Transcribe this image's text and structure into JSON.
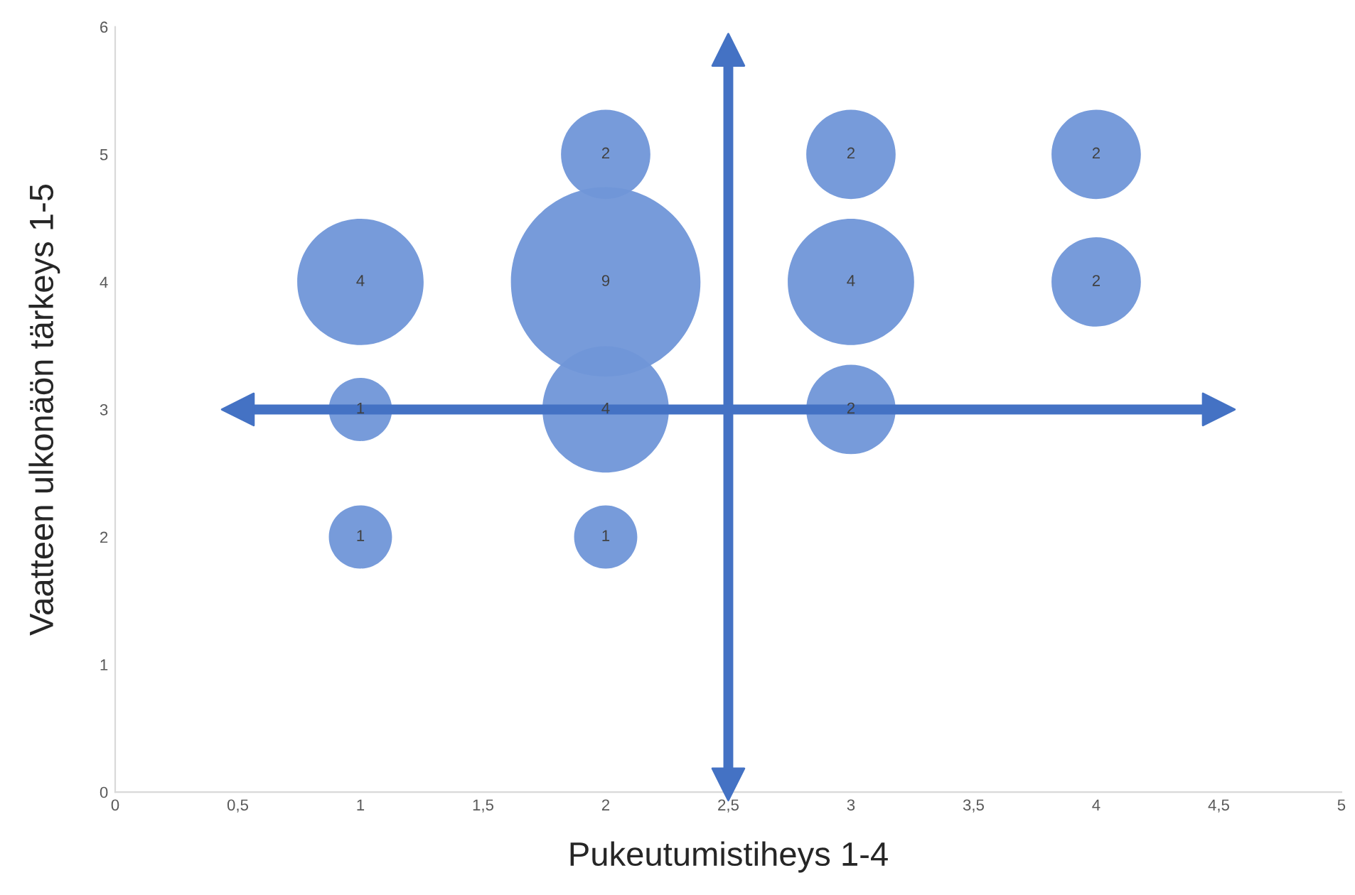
{
  "chart_data": {
    "type": "bubble",
    "xlabel": "Pukeutumistiheys 1-4",
    "ylabel": "Vaatteen ulkonäön tärkeys 1-5",
    "series": [
      {
        "color": "#7096d8",
        "x": [
          1,
          1,
          1,
          2,
          2,
          2,
          2,
          3,
          3,
          3,
          4,
          4
        ],
        "values": [
          4,
          3,
          2,
          5,
          4,
          3,
          2,
          5,
          4,
          3,
          5,
          4
        ],
        "sizes": [
          4,
          1,
          1,
          2,
          9,
          4,
          1,
          2,
          4,
          2,
          2,
          2
        ],
        "value_labels": [
          "4",
          "1",
          "1",
          "2",
          "9",
          "4",
          "1",
          "2",
          "4",
          "2",
          "2",
          "2"
        ]
      }
    ],
    "xlim": [
      0,
      5
    ],
    "ylim": [
      0,
      6
    ],
    "xticks": [
      0,
      {
        "value": 0.5,
        "label": "0,5"
      },
      1,
      {
        "value": 1.5,
        "label": "1,5"
      },
      2,
      {
        "value": 2.5,
        "label": "2,5"
      },
      3,
      {
        "value": 3.5,
        "label": "3,5"
      },
      4,
      {
        "value": 4.5,
        "label": "4,5"
      },
      5
    ],
    "yticks": [
      0,
      1,
      2,
      3,
      4,
      5,
      6
    ],
    "ref_lines": [
      {
        "axis": "x",
        "value": 2.5,
        "color": "#4472c4"
      },
      {
        "axis": "y",
        "value": 3,
        "color": "#4472c4"
      }
    ],
    "grid": false,
    "legend": false
  }
}
